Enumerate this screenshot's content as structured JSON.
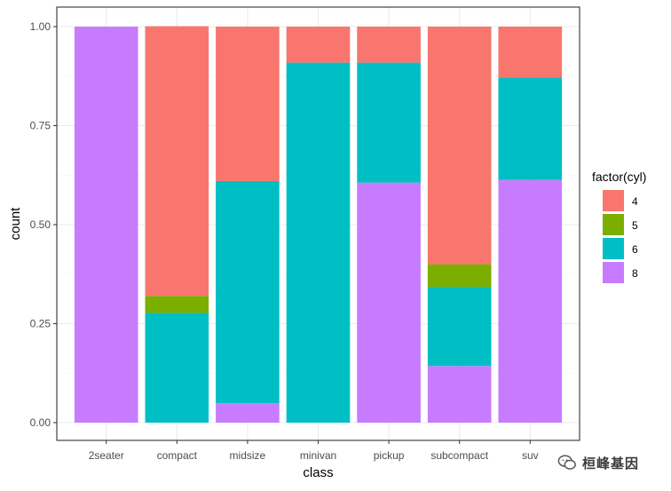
{
  "chart_data": {
    "type": "bar",
    "position": "fill",
    "categories": [
      "2seater",
      "compact",
      "midsize",
      "minivan",
      "pickup",
      "subcompact",
      "suv"
    ],
    "stack_order_top_to_bottom": [
      "4",
      "5",
      "6",
      "8"
    ],
    "series": [
      {
        "name": "4",
        "color": "#F8766D",
        "values": [
          0.0,
          0.681,
          0.39,
          0.091,
          0.091,
          0.6,
          0.129
        ]
      },
      {
        "name": "5",
        "color": "#7CAE00",
        "values": [
          0.0,
          0.043,
          0.0,
          0.0,
          0.0,
          0.057,
          0.0
        ]
      },
      {
        "name": "6",
        "color": "#00BFC4",
        "values": [
          0.0,
          0.277,
          0.561,
          0.909,
          0.303,
          0.2,
          0.258
        ]
      },
      {
        "name": "8",
        "color": "#C77CFF",
        "values": [
          1.0,
          0.0,
          0.049,
          0.0,
          0.606,
          0.143,
          0.613
        ]
      }
    ],
    "xlabel": "class",
    "ylabel": "count",
    "ylim": [
      0,
      1
    ],
    "yticks": [
      "0.00",
      "0.25",
      "0.50",
      "0.75",
      "1.00"
    ],
    "ytick_values": [
      0,
      0.25,
      0.5,
      0.75,
      1.0
    ],
    "legend": {
      "title": "factor(cyl)",
      "entries": [
        "4",
        "5",
        "6",
        "8"
      ],
      "placement": "right"
    },
    "grid": true
  },
  "colors": {
    "panel_bg": "#FFFFFF",
    "grid_major": "#EBEBEB",
    "grid_minor": "#F3F3F3",
    "border": "#333333"
  },
  "watermark": {
    "text": "桓峰基因",
    "icon": "wechat-icon"
  }
}
